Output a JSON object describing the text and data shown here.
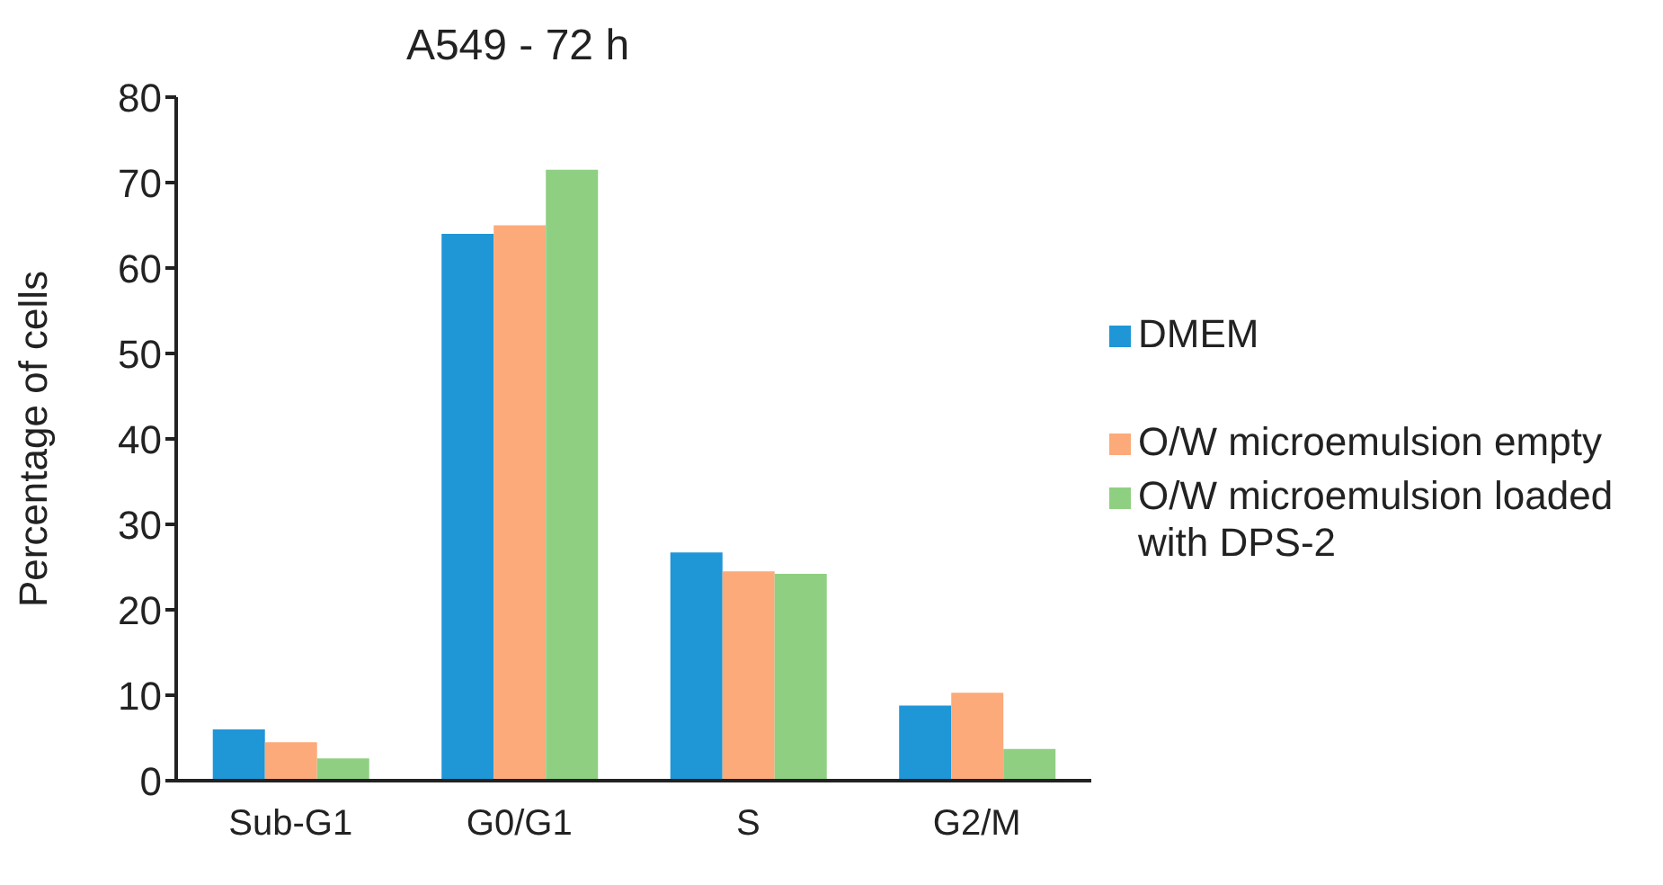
{
  "chart_data": {
    "type": "bar",
    "title": "A549 - 72 h",
    "ylabel": "Percentage of cells",
    "categories": [
      "Sub-G1",
      "G0/G1",
      "S",
      "G2/M"
    ],
    "series": [
      {
        "name": "DMEM",
        "color": "#1f96d6",
        "values": [
          6.0,
          64.0,
          26.7,
          8.8
        ]
      },
      {
        "name": "O/W microemulsion empty",
        "color": "#fcaa7a",
        "values": [
          4.5,
          65.0,
          24.5,
          10.3
        ]
      },
      {
        "name": "O/W microemulsion loaded with DPS-2",
        "color": "#8fcf82",
        "values": [
          2.6,
          71.5,
          24.2,
          3.7
        ]
      }
    ],
    "ylim": [
      0,
      80
    ],
    "yticks": [
      0,
      10,
      20,
      30,
      40,
      50,
      60,
      70,
      80
    ],
    "grid": false,
    "legend": "right"
  }
}
